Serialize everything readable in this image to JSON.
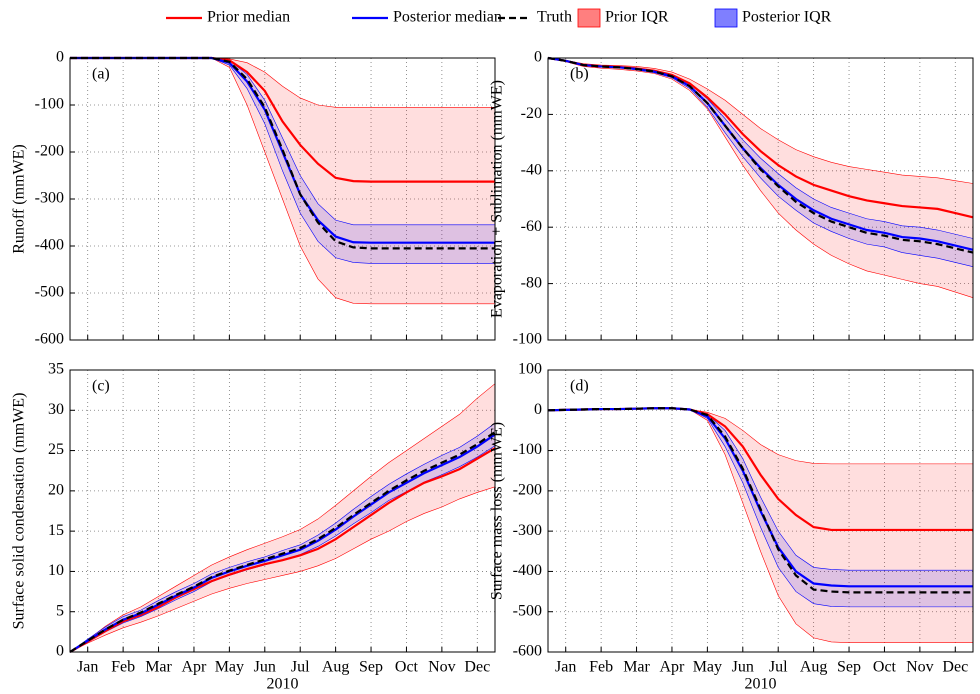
{
  "chart_data": [
    {
      "type": "line",
      "panel_label": "(a)",
      "ylabel": "Runoff (mmWE)",
      "ylim": [
        -600,
        0
      ],
      "yticks": [
        -600,
        -500,
        -400,
        -300,
        -200,
        -100,
        0
      ],
      "grid": true,
      "categories": [
        null,
        null,
        null,
        null,
        null,
        null,
        null,
        null,
        null,
        null,
        null,
        null,
        null,
        null,
        null,
        null,
        null,
        null,
        null,
        null,
        null,
        null,
        null,
        null,
        null
      ],
      "series": [
        {
          "name": "Prior median",
          "kind": "line",
          "color": "#ff0000",
          "style": "solid",
          "values": [
            0,
            0,
            0,
            0,
            0,
            0,
            0,
            0,
            0,
            -5,
            -30,
            -70,
            -135,
            -185,
            -225,
            -255,
            -262,
            -263,
            -263,
            -263,
            -263,
            -263,
            -263,
            -263,
            -263
          ]
        },
        {
          "name": "Posterior median",
          "kind": "line",
          "color": "#0000ff",
          "style": "solid",
          "values": [
            0,
            0,
            0,
            0,
            0,
            0,
            0,
            0,
            0,
            -10,
            -50,
            -110,
            -200,
            -290,
            -345,
            -380,
            -392,
            -393,
            -393,
            -393,
            -393,
            -393,
            -393,
            -393,
            -393
          ]
        },
        {
          "name": "Truth",
          "kind": "line",
          "color": "#000000",
          "style": "dashed",
          "values": [
            0,
            0,
            0,
            0,
            0,
            0,
            0,
            0,
            0,
            -8,
            -45,
            -105,
            -195,
            -290,
            -350,
            -390,
            -403,
            -405,
            -405,
            -405,
            -405,
            -405,
            -405,
            -405,
            -405
          ]
        },
        {
          "name": "Prior IQR",
          "kind": "band",
          "color": "#ff0000",
          "upper": [
            0,
            0,
            0,
            0,
            0,
            0,
            0,
            0,
            0,
            -2,
            -10,
            -30,
            -60,
            -85,
            -100,
            -105,
            -105,
            -105,
            -105,
            -105,
            -105,
            -105,
            -105,
            -105,
            -105
          ],
          "lower": [
            0,
            0,
            0,
            0,
            0,
            0,
            0,
            0,
            0,
            -20,
            -100,
            -200,
            -300,
            -400,
            -470,
            -510,
            -522,
            -523,
            -523,
            -523,
            -523,
            -523,
            -523,
            -523,
            -523
          ]
        },
        {
          "name": "Posterior IQR",
          "kind": "band",
          "color": "#0000ff",
          "upper": [
            0,
            0,
            0,
            0,
            0,
            0,
            0,
            0,
            0,
            -5,
            -35,
            -90,
            -170,
            -250,
            -310,
            -345,
            -355,
            -355,
            -355,
            -355,
            -355,
            -355,
            -355,
            -355,
            -355
          ],
          "lower": [
            0,
            0,
            0,
            0,
            0,
            0,
            0,
            0,
            0,
            -15,
            -65,
            -140,
            -240,
            -330,
            -390,
            -425,
            -435,
            -437,
            -437,
            -437,
            -437,
            -437,
            -437,
            -437,
            -437
          ]
        }
      ]
    },
    {
      "type": "line",
      "panel_label": "(b)",
      "ylabel": "Evaporation + Sublimation (mmWE)",
      "ylim": [
        -100,
        0
      ],
      "yticks": [
        -100,
        -80,
        -60,
        -40,
        -20,
        0
      ],
      "grid": true,
      "categories": [
        null,
        null,
        null,
        null,
        null,
        null,
        null,
        null,
        null,
        null,
        null,
        null,
        null,
        null,
        null,
        null,
        null,
        null,
        null,
        null,
        null,
        null,
        null,
        null,
        null
      ],
      "series": [
        {
          "kind": "line",
          "color": "#ff0000",
          "style": "solid",
          "values": [
            0,
            -1,
            -2.5,
            -3,
            -3.2,
            -3.7,
            -4.5,
            -6,
            -9,
            -14,
            -20,
            -27,
            -33,
            -38,
            -42,
            -45,
            -47,
            -49,
            -50.5,
            -51.5,
            -52.5,
            -53,
            -53.5,
            -55,
            -56.5
          ]
        },
        {
          "kind": "line",
          "color": "#0000ff",
          "style": "solid",
          "values": [
            0,
            -1,
            -2.5,
            -3,
            -3.3,
            -3.9,
            -4.8,
            -6.5,
            -10,
            -16,
            -24,
            -32,
            -39,
            -45,
            -50,
            -54,
            -57,
            -59,
            -61,
            -62,
            -63.5,
            -64,
            -65,
            -66.5,
            -68
          ]
        },
        {
          "kind": "line",
          "color": "#000000",
          "style": "dashed",
          "values": [
            0,
            -1,
            -2.5,
            -3,
            -3.3,
            -3.9,
            -4.8,
            -6.5,
            -10,
            -16,
            -24,
            -32,
            -39.5,
            -45.5,
            -51,
            -55,
            -58,
            -60,
            -62,
            -63,
            -64.5,
            -65,
            -66,
            -67.5,
            -69
          ]
        },
        {
          "kind": "band",
          "color": "#ff0000",
          "upper": [
            0,
            -0.8,
            -2,
            -2.5,
            -2.7,
            -3,
            -3.7,
            -5,
            -7.5,
            -11,
            -15,
            -20,
            -25,
            -29,
            -32.5,
            -35,
            -37,
            -38.5,
            -39.5,
            -40.5,
            -41.5,
            -42,
            -42.5,
            -43.5,
            -44.5
          ],
          "lower": [
            0,
            -1.3,
            -3,
            -3.6,
            -4,
            -4.6,
            -5.5,
            -7.5,
            -11.5,
            -18,
            -28,
            -38,
            -47,
            -55,
            -61,
            -66,
            -70,
            -73,
            -75.5,
            -77,
            -78.5,
            -80,
            -81,
            -83,
            -85
          ]
        },
        {
          "kind": "band",
          "color": "#0000ff",
          "upper": [
            0,
            -0.9,
            -2.3,
            -2.8,
            -3.1,
            -3.6,
            -4.4,
            -6,
            -9.2,
            -14.5,
            -21.5,
            -29,
            -35.5,
            -41,
            -46,
            -50,
            -53,
            -55,
            -57,
            -58,
            -59.5,
            -60,
            -61,
            -62.5,
            -64
          ],
          "lower": [
            0,
            -1.1,
            -2.7,
            -3.2,
            -3.5,
            -4.2,
            -5.2,
            -7,
            -10.8,
            -17.5,
            -26.5,
            -35,
            -42.5,
            -49,
            -54,
            -58.5,
            -61.5,
            -64,
            -66,
            -67,
            -69,
            -70,
            -71,
            -72.5,
            -74
          ]
        }
      ]
    },
    {
      "type": "line",
      "panel_label": "(c)",
      "ylabel": "Surface solid condensation (mmWE)",
      "xlabel": "2010",
      "ylim": [
        0,
        35
      ],
      "yticks": [
        0,
        5,
        10,
        15,
        20,
        25,
        30,
        35
      ],
      "grid": true,
      "categories": [
        null,
        "Jan",
        null,
        "Feb",
        null,
        "Mar",
        null,
        "Apr",
        null,
        "May",
        null,
        "Jun",
        null,
        "Jul",
        null,
        "Aug",
        null,
        "Sep",
        null,
        "Oct",
        null,
        "Nov",
        null,
        "Dec",
        null
      ],
      "series": [
        {
          "kind": "line",
          "color": "#ff0000",
          "style": "solid",
          "values": [
            0,
            1.3,
            2.6,
            3.8,
            4.6,
            5.6,
            6.8,
            7.8,
            8.8,
            9.6,
            10.3,
            10.9,
            11.4,
            12,
            12.8,
            14,
            15.5,
            17,
            18.5,
            19.8,
            21,
            21.8,
            22.7,
            24,
            25.3
          ]
        },
        {
          "kind": "line",
          "color": "#0000ff",
          "style": "solid",
          "values": [
            0,
            1.4,
            2.8,
            4,
            4.8,
            5.9,
            7,
            8,
            9.2,
            10,
            10.7,
            11.3,
            12,
            12.7,
            13.8,
            15.2,
            16.8,
            18.3,
            19.8,
            21,
            22.2,
            23.2,
            24.2,
            25.5,
            27
          ]
        },
        {
          "kind": "line",
          "color": "#000000",
          "style": "dashed",
          "values": [
            0,
            1.4,
            2.8,
            4,
            4.9,
            6,
            7.1,
            8.1,
            9.3,
            10.1,
            10.8,
            11.5,
            12.2,
            12.9,
            14,
            15.4,
            17,
            18.5,
            20,
            21.3,
            22.5,
            23.5,
            24.5,
            25.8,
            27.3
          ]
        },
        {
          "kind": "band",
          "color": "#ff0000",
          "upper": [
            0,
            1.5,
            3.2,
            4.6,
            5.6,
            6.9,
            8.2,
            9.5,
            10.8,
            11.8,
            12.7,
            13.5,
            14.3,
            15.2,
            16.5,
            18.2,
            20,
            21.8,
            23.5,
            25,
            26.5,
            28,
            29.5,
            31.5,
            33.3
          ],
          "lower": [
            0,
            1.1,
            2.1,
            3,
            3.7,
            4.5,
            5.4,
            6.3,
            7.2,
            7.9,
            8.5,
            9,
            9.5,
            10,
            10.7,
            11.6,
            12.8,
            14,
            15,
            16.2,
            17.2,
            18,
            19,
            19.8,
            20.5
          ]
        },
        {
          "kind": "band",
          "color": "#0000ff",
          "upper": [
            0,
            1.6,
            3.1,
            4.4,
            5.2,
            6.4,
            7.5,
            8.5,
            9.7,
            10.5,
            11.2,
            11.8,
            12.6,
            13.3,
            14.5,
            16,
            17.7,
            19.3,
            20.8,
            22.1,
            23.3,
            24.4,
            25.4,
            26.8,
            28.4
          ],
          "lower": [
            0,
            1.2,
            2.5,
            3.6,
            4.4,
            5.4,
            6.5,
            7.5,
            8.7,
            9.5,
            10.2,
            10.8,
            11.4,
            12.1,
            13.1,
            14.4,
            15.9,
            17.3,
            18.8,
            19.9,
            21.1,
            22,
            23,
            24.2,
            25.6
          ]
        }
      ]
    },
    {
      "type": "line",
      "panel_label": "(d)",
      "ylabel": "Surface mass loss (mmWE)",
      "xlabel": "2010",
      "ylim": [
        -600,
        100
      ],
      "yticks": [
        -600,
        -500,
        -400,
        -300,
        -200,
        -100,
        0,
        100
      ],
      "grid": true,
      "categories": [
        null,
        "Jan",
        null,
        "Feb",
        null,
        "Mar",
        null,
        "Apr",
        null,
        "May",
        null,
        "Jun",
        null,
        "Jul",
        null,
        "Aug",
        null,
        "Sep",
        null,
        "Oct",
        null,
        "Nov",
        null,
        "Dec",
        null
      ],
      "series": [
        {
          "kind": "line",
          "color": "#ff0000",
          "style": "solid",
          "values": [
            0,
            1,
            2,
            3,
            3,
            4,
            5,
            5,
            2,
            -10,
            -40,
            -90,
            -160,
            -220,
            -260,
            -290,
            -297,
            -297,
            -297,
            -297,
            -297,
            -297,
            -297,
            -297,
            -297
          ]
        },
        {
          "kind": "line",
          "color": "#0000ff",
          "style": "solid",
          "values": [
            0,
            1,
            2,
            3,
            3,
            4,
            5,
            5,
            2,
            -15,
            -70,
            -150,
            -250,
            -340,
            -400,
            -430,
            -435,
            -437,
            -437,
            -437,
            -437,
            -437,
            -437,
            -437,
            -437
          ]
        },
        {
          "kind": "line",
          "color": "#000000",
          "style": "dashed",
          "values": [
            0,
            1,
            2,
            3,
            3,
            4,
            5,
            5,
            2,
            -12,
            -65,
            -145,
            -245,
            -345,
            -410,
            -445,
            -450,
            -452,
            -452,
            -452,
            -452,
            -452,
            -452,
            -452,
            -452
          ]
        },
        {
          "kind": "band",
          "color": "#ff0000",
          "upper": [
            0,
            1,
            2,
            3,
            3,
            4,
            5,
            5,
            2,
            -5,
            -20,
            -50,
            -85,
            -110,
            -125,
            -132,
            -133,
            -133,
            -133,
            -133,
            -133,
            -133,
            -133,
            -133,
            -133
          ],
          "lower": [
            0,
            1,
            2,
            3,
            3,
            4,
            5,
            5,
            2,
            -25,
            -110,
            -230,
            -350,
            -460,
            -530,
            -565,
            -575,
            -577,
            -577,
            -577,
            -577,
            -577,
            -577,
            -577,
            -577
          ]
        },
        {
          "kind": "band",
          "color": "#0000ff",
          "upper": [
            0,
            1,
            2,
            3,
            3,
            4,
            5,
            5,
            2,
            -10,
            -50,
            -120,
            -215,
            -300,
            -360,
            -390,
            -395,
            -397,
            -397,
            -397,
            -397,
            -397,
            -397,
            -397,
            -397
          ],
          "lower": [
            0,
            1,
            2,
            3,
            3,
            4,
            5,
            5,
            2,
            -20,
            -90,
            -180,
            -290,
            -390,
            -450,
            -480,
            -487,
            -488,
            -488,
            -488,
            -488,
            -488,
            -488,
            -488,
            -488
          ]
        }
      ]
    }
  ]
}
